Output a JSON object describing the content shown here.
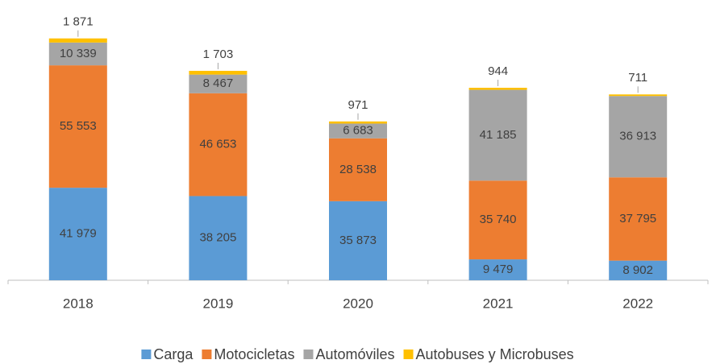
{
  "chart_data": {
    "type": "stacked_bar",
    "categories": [
      "2018",
      "2019",
      "2020",
      "2021",
      "2022"
    ],
    "series": [
      {
        "name": "Carga",
        "color": "#5b9bd5",
        "values": [
          41979,
          38205,
          35873,
          9479,
          8902
        ],
        "value_labels": [
          "41 979",
          "38 205",
          "35 873",
          "9 479",
          "8 902"
        ]
      },
      {
        "name": "Motocicletas",
        "color": "#ed7d31",
        "values": [
          55553,
          46653,
          28538,
          35740,
          37795
        ],
        "value_labels": [
          "55 553",
          "46 653",
          "28 538",
          "35 740",
          "37 795"
        ]
      },
      {
        "name": "Automóviles",
        "color": "#a5a5a5",
        "values": [
          10339,
          8467,
          6683,
          41185,
          36913
        ],
        "value_labels": [
          "10 339",
          "8 467",
          "6 683",
          "41 185",
          "36 913"
        ]
      },
      {
        "name": "Autobuses y Microbuses",
        "color": "#ffc000",
        "values": [
          1871,
          1703,
          971,
          944,
          711
        ],
        "value_labels": [
          "1 871",
          "1 703",
          "971",
          "944",
          "711"
        ]
      }
    ],
    "ylim": [
      0,
      110000
    ],
    "legend": "bottom"
  }
}
